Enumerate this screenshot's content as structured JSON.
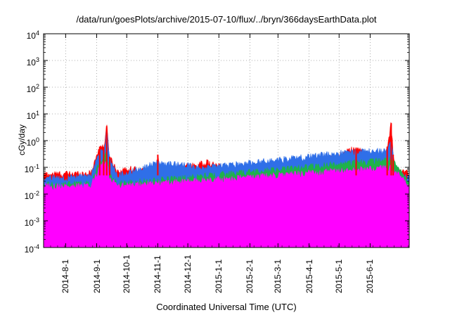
{
  "chart_data": {
    "type": "area",
    "title": "/data/run/goesPlots/archive/2015-07-10/flux/../bryn/366daysEarthData.plot",
    "xlabel": "Coordinated Universal Time (UTC)",
    "ylabel": "cGy/day",
    "yscale": "log",
    "ylim": [
      0.0001,
      10000
    ],
    "xlim": [
      "2014-07-10",
      "2015-07-10"
    ],
    "grid": true,
    "legend": "none",
    "yticks": [
      {
        "base": "10",
        "exp": "-4"
      },
      {
        "base": "10",
        "exp": "-3"
      },
      {
        "base": "10",
        "exp": "-2"
      },
      {
        "base": "10",
        "exp": "-1"
      },
      {
        "base": "10",
        "exp": "0"
      },
      {
        "base": "10",
        "exp": "1"
      },
      {
        "base": "10",
        "exp": "2"
      },
      {
        "base": "10",
        "exp": "3"
      },
      {
        "base": "10",
        "exp": "4"
      }
    ],
    "xticks": [
      {
        "label": "2014-8-1",
        "date": "2014-08-01"
      },
      {
        "label": "2014-9-1",
        "date": "2014-09-01"
      },
      {
        "label": "2014-10-1",
        "date": "2014-10-01"
      },
      {
        "label": "2014-11-1",
        "date": "2014-11-01"
      },
      {
        "label": "2014-12-1",
        "date": "2014-12-01"
      },
      {
        "label": "2015-1-1",
        "date": "2015-01-01"
      },
      {
        "label": "2015-2-1",
        "date": "2015-02-01"
      },
      {
        "label": "2015-3-1",
        "date": "2015-03-01"
      },
      {
        "label": "2015-4-1",
        "date": "2015-04-01"
      },
      {
        "label": "2015-5-1",
        "date": "2015-05-01"
      },
      {
        "label": "2015-6-1",
        "date": "2015-06-01"
      }
    ],
    "series": [
      {
        "color": "#ff0000",
        "baseline": 0.06,
        "points": [
          [
            "2014-07-10",
            0.055
          ],
          [
            "2014-08-26",
            0.06
          ],
          [
            "2014-09-04",
            0.6
          ],
          [
            "2014-09-08",
            0.55
          ],
          [
            "2014-09-11",
            3.5
          ],
          [
            "2014-09-14",
            0.25
          ],
          [
            "2014-09-22",
            0.07
          ],
          [
            "2014-10-04",
            0.09
          ],
          [
            "2014-10-30",
            0.07
          ],
          [
            "2014-11-01",
            0.3
          ],
          [
            "2014-11-03",
            0.07
          ],
          [
            "2014-12-20",
            0.15
          ],
          [
            "2015-01-07",
            0.09
          ],
          [
            "2015-03-17",
            0.12
          ],
          [
            "2015-04-01",
            0.09
          ],
          [
            "2015-05-18",
            0.55
          ],
          [
            "2015-06-14",
            0.09
          ],
          [
            "2015-06-18",
            0.6
          ],
          [
            "2015-06-22",
            4.5
          ],
          [
            "2015-06-24",
            0.3
          ],
          [
            "2015-06-26",
            0.08
          ],
          [
            "2015-07-10",
            0.06
          ]
        ]
      },
      {
        "color": "#2f6fe8",
        "baseline": 0.045,
        "points": [
          [
            "2014-07-10",
            0.04
          ],
          [
            "2014-08-26",
            0.045
          ],
          [
            "2014-09-04",
            0.4
          ],
          [
            "2014-09-08",
            0.35
          ],
          [
            "2014-09-11",
            2.5
          ],
          [
            "2014-09-14",
            0.18
          ],
          [
            "2014-09-22",
            0.05
          ],
          [
            "2014-11-01",
            0.15
          ],
          [
            "2014-12-20",
            0.1
          ],
          [
            "2015-05-18",
            0.4
          ],
          [
            "2015-06-18",
            0.4
          ],
          [
            "2015-06-22",
            1.3
          ],
          [
            "2015-06-26",
            0.06
          ],
          [
            "2015-07-10",
            0.045
          ]
        ]
      },
      {
        "color": "#1fb24a",
        "baseline": 0.025,
        "points": [
          [
            "2014-07-10",
            0.022
          ],
          [
            "2014-08-26",
            0.025
          ],
          [
            "2014-09-04",
            0.15
          ],
          [
            "2014-09-11",
            0.4
          ],
          [
            "2014-09-14",
            0.05
          ],
          [
            "2014-09-22",
            0.025
          ],
          [
            "2015-06-22",
            0.2
          ],
          [
            "2015-07-10",
            0.025
          ]
        ]
      },
      {
        "color": "#ff00ff",
        "baseline": 0.02,
        "floor": 0.002,
        "points": [
          [
            "2014-07-10",
            0.02
          ],
          [
            "2014-08-26",
            0.02
          ],
          [
            "2014-09-04",
            0.1
          ],
          [
            "2014-09-11",
            0.2
          ],
          [
            "2014-09-14",
            0.04
          ],
          [
            "2014-09-22",
            0.02
          ],
          [
            "2015-06-22",
            0.1
          ],
          [
            "2015-07-10",
            0.02
          ]
        ]
      }
    ]
  }
}
